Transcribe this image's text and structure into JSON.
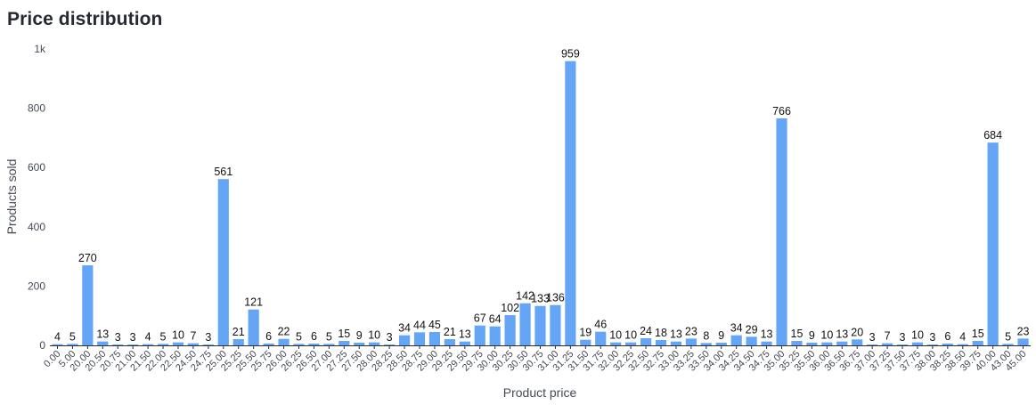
{
  "chart_data": {
    "type": "bar",
    "title": "Price distribution",
    "xlabel": "Product price",
    "ylabel": "Products sold",
    "ylim": [
      0,
      1000
    ],
    "yticks": [
      "0",
      "200",
      "400",
      "600",
      "800",
      "1k"
    ],
    "grid": false,
    "bar_color": "#64a6f5",
    "categories": [
      "0.00",
      "5.00",
      "20.00",
      "20.50",
      "20.75",
      "21.00",
      "21.50",
      "22.00",
      "22.50",
      "24.50",
      "24.75",
      "25.00",
      "25.25",
      "25.50",
      "25.75",
      "26.00",
      "26.25",
      "26.50",
      "27.00",
      "27.25",
      "27.50",
      "28.00",
      "28.25",
      "28.50",
      "28.75",
      "29.00",
      "29.25",
      "29.50",
      "29.75",
      "30.00",
      "30.25",
      "30.50",
      "30.75",
      "31.00",
      "31.25",
      "31.50",
      "31.75",
      "32.00",
      "32.25",
      "32.50",
      "32.75",
      "33.00",
      "33.25",
      "33.50",
      "34.00",
      "34.25",
      "34.50",
      "34.75",
      "35.00",
      "35.25",
      "35.50",
      "36.00",
      "36.50",
      "36.75",
      "37.00",
      "37.25",
      "37.50",
      "37.75",
      "38.00",
      "38.25",
      "38.50",
      "39.75",
      "40.00",
      "43.00",
      "45.00"
    ],
    "values": [
      4,
      5,
      270,
      13,
      3,
      3,
      4,
      5,
      10,
      7,
      3,
      561,
      21,
      121,
      6,
      22,
      5,
      6,
      5,
      15,
      9,
      10,
      3,
      34,
      44,
      45,
      21,
      13,
      67,
      64,
      102,
      142,
      133,
      136,
      959,
      19,
      46,
      10,
      10,
      24,
      18,
      13,
      23,
      8,
      9,
      34,
      29,
      13,
      766,
      15,
      9,
      10,
      13,
      20,
      3,
      7,
      3,
      10,
      3,
      6,
      4,
      15,
      684,
      5,
      23
    ]
  }
}
